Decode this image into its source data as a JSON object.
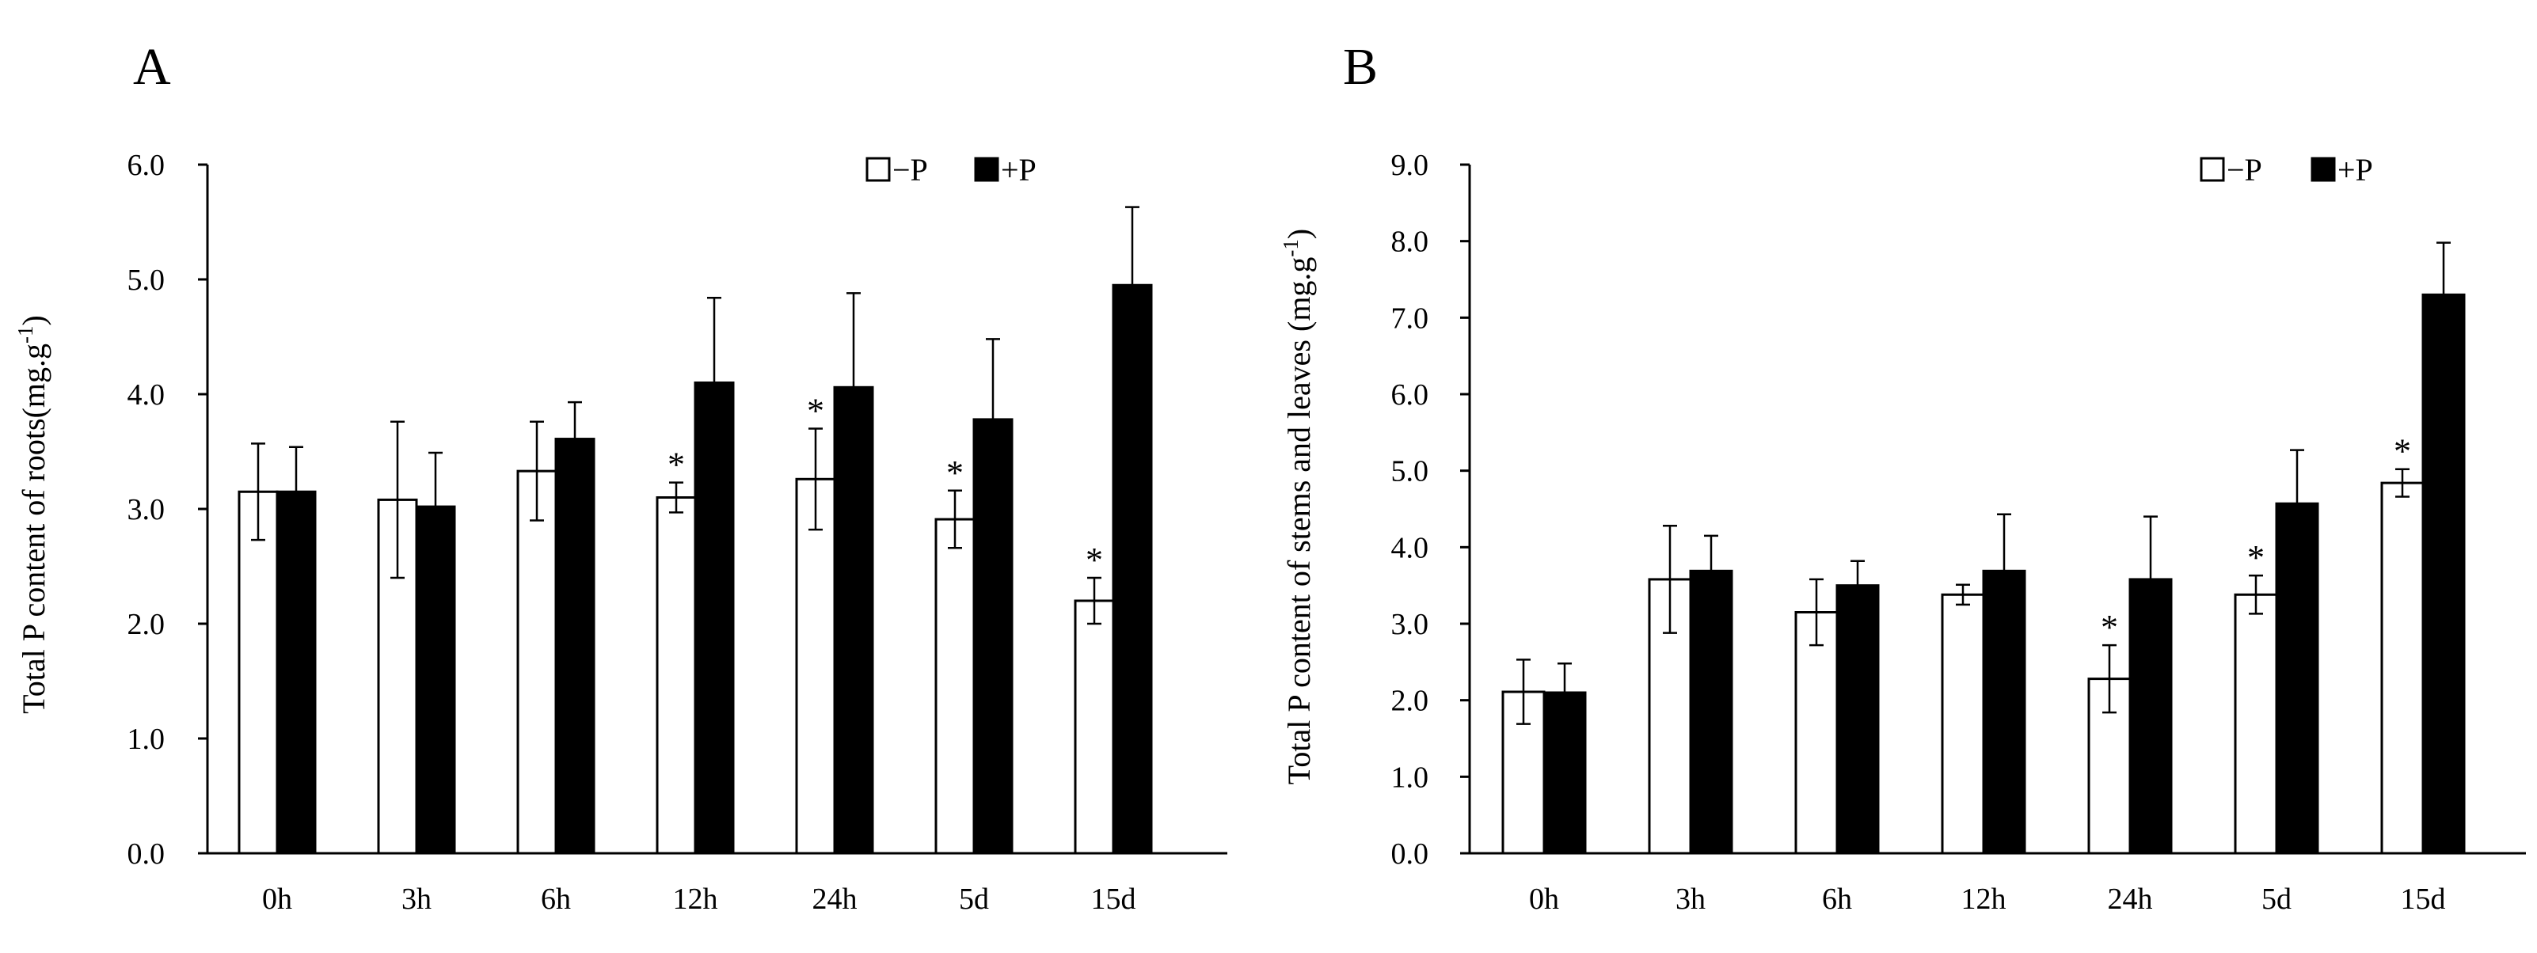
{
  "chart_data": [
    {
      "type": "bar",
      "panel_label": "A",
      "categories": [
        "0h",
        "3h",
        "6h",
        "12h",
        "24h",
        "5d",
        "15d"
      ],
      "ylabel": "Total P content of roots(mg.g",
      "ylabel_sup": "-1",
      "ylabel_end": ")",
      "ylim": [
        0,
        6
      ],
      "yticks": [
        "0.0",
        "1.0",
        "2.0",
        "3.0",
        "4.0",
        "5.0",
        "6.0"
      ],
      "legend_position": "top-right",
      "series": [
        {
          "name": "−P",
          "fill": "#ffffff",
          "values": [
            3.15,
            3.08,
            3.33,
            3.1,
            3.26,
            2.91,
            2.2
          ],
          "errors": [
            0.42,
            0.68,
            0.43,
            0.13,
            0.44,
            0.25,
            0.2
          ],
          "significant": [
            false,
            false,
            false,
            true,
            true,
            true,
            true
          ]
        },
        {
          "name": "+P",
          "fill": "#000000",
          "values": [
            3.15,
            3.02,
            3.61,
            4.1,
            4.06,
            3.78,
            4.95
          ],
          "errors": [
            0.39,
            0.47,
            0.32,
            0.74,
            0.82,
            0.7,
            0.68
          ]
        }
      ],
      "annotation_text": "*"
    },
    {
      "type": "bar",
      "panel_label": "B",
      "categories": [
        "0h",
        "3h",
        "6h",
        "12h",
        "24h",
        "5d",
        "15d"
      ],
      "ylabel": "Total P content of stems and leaves (mg.g",
      "ylabel_sup": "-1",
      "ylabel_end": ")",
      "ylim": [
        0,
        9
      ],
      "yticks": [
        "0.0",
        "1.0",
        "2.0",
        "3.0",
        "4.0",
        "5.0",
        "6.0",
        "7.0",
        "8.0",
        "9.0"
      ],
      "legend_position": "top-right",
      "series": [
        {
          "name": "−P",
          "fill": "#ffffff",
          "values": [
            2.11,
            3.58,
            3.15,
            3.38,
            2.28,
            3.38,
            4.84
          ],
          "errors": [
            0.42,
            0.7,
            0.43,
            0.13,
            0.44,
            0.25,
            0.18
          ],
          "significant": [
            false,
            false,
            false,
            false,
            true,
            true,
            true
          ]
        },
        {
          "name": "+P",
          "fill": "#000000",
          "values": [
            2.1,
            3.69,
            3.5,
            3.69,
            3.58,
            4.57,
            7.3
          ],
          "errors": [
            0.38,
            0.46,
            0.32,
            0.74,
            0.82,
            0.7,
            0.68
          ]
        }
      ],
      "annotation_text": "*"
    }
  ]
}
